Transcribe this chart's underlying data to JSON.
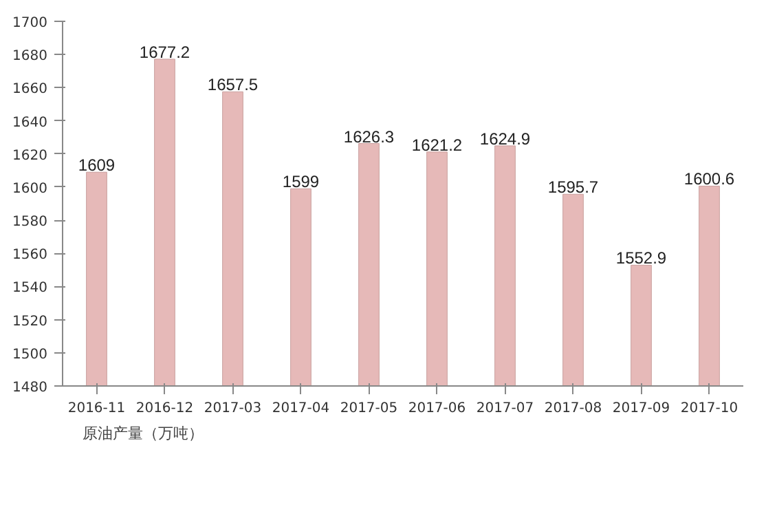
{
  "chart_data": {
    "type": "bar",
    "categories": [
      "2016-11",
      "2016-12",
      "2017-03",
      "2017-04",
      "2017-05",
      "2017-06",
      "2017-07",
      "2017-08",
      "2017-09",
      "2017-10"
    ],
    "series": [
      {
        "name": "原油产量（万吨）",
        "color": "#e6b9b8",
        "values": [
          1609,
          1677.2,
          1657.5,
          1599,
          1626.3,
          1621.2,
          1624.9,
          1595.7,
          1552.9,
          1600.6
        ]
      }
    ],
    "ylim": [
      1480,
      1700
    ],
    "yticks": [
      1480,
      1500,
      1520,
      1540,
      1560,
      1580,
      1600,
      1620,
      1640,
      1660,
      1680,
      1700
    ],
    "data_labels": true,
    "legend": "bottom",
    "grid": false
  }
}
